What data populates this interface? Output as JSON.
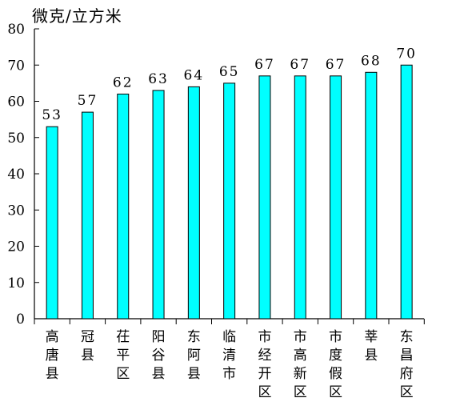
{
  "chart_data": {
    "type": "bar",
    "ylabel": "微克/立方米",
    "ylim": [
      0,
      80
    ],
    "yticks": [
      0,
      10,
      20,
      30,
      40,
      50,
      60,
      70,
      80
    ],
    "grid": false,
    "bar_color": "#00FFFF",
    "categories": [
      "高唐县",
      "冠县",
      "茌平区",
      "阳谷县",
      "东阿县",
      "临清市",
      "市经开区",
      "市高新区",
      "市度假区",
      "莘县",
      "东昌府区"
    ],
    "values": [
      53,
      57,
      62,
      63,
      64,
      65,
      67,
      67,
      67,
      68,
      70
    ],
    "data_labels": [
      "53",
      "57",
      "62",
      "63",
      "64",
      "65",
      "67",
      "67",
      "67",
      "68",
      "70"
    ]
  }
}
